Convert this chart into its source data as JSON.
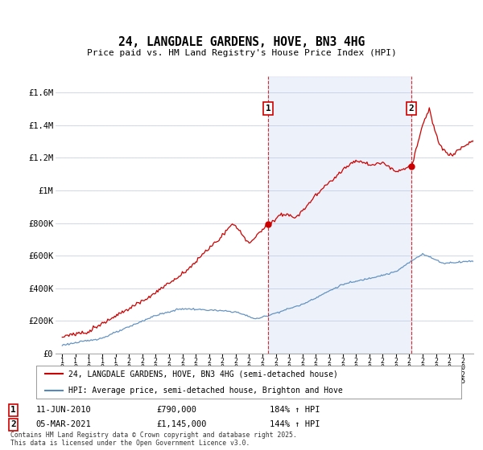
{
  "title": "24, LANGDALE GARDENS, HOVE, BN3 4HG",
  "subtitle": "Price paid vs. HM Land Registry's House Price Index (HPI)",
  "background_color": "#ffffff",
  "plot_bg_color": "#ffffff",
  "grid_color": "#d0d8e8",
  "sale1_date": "11-JUN-2010",
  "sale1_price": "£790,000",
  "sale1_hpi": "184% ↑ HPI",
  "sale1_x": 2010.44,
  "sale2_date": "05-MAR-2021",
  "sale2_price": "£1,145,000",
  "sale2_hpi": "144% ↑ HPI",
  "sale2_x": 2021.17,
  "legend1": "24, LANGDALE GARDENS, HOVE, BN3 4HG (semi-detached house)",
  "legend2": "HPI: Average price, semi-detached house, Brighton and Hove",
  "footer": "Contains HM Land Registry data © Crown copyright and database right 2025.\nThis data is licensed under the Open Government Licence v3.0.",
  "line1_color": "#cc0000",
  "line2_color": "#5588bb",
  "fill_between_color": "#dde8f5",
  "vline_color": "#cc0000",
  "ylim_max": 1700000,
  "ylim_min": 0,
  "xlim_min": 1994.5,
  "xlim_max": 2025.8,
  "yticks": [
    0,
    200000,
    400000,
    600000,
    800000,
    1000000,
    1200000,
    1400000,
    1600000
  ],
  "ytick_labels": [
    "£0",
    "£200K",
    "£400K",
    "£600K",
    "£800K",
    "£1M",
    "£1.2M",
    "£1.4M",
    "£1.6M"
  ],
  "seed": 123
}
